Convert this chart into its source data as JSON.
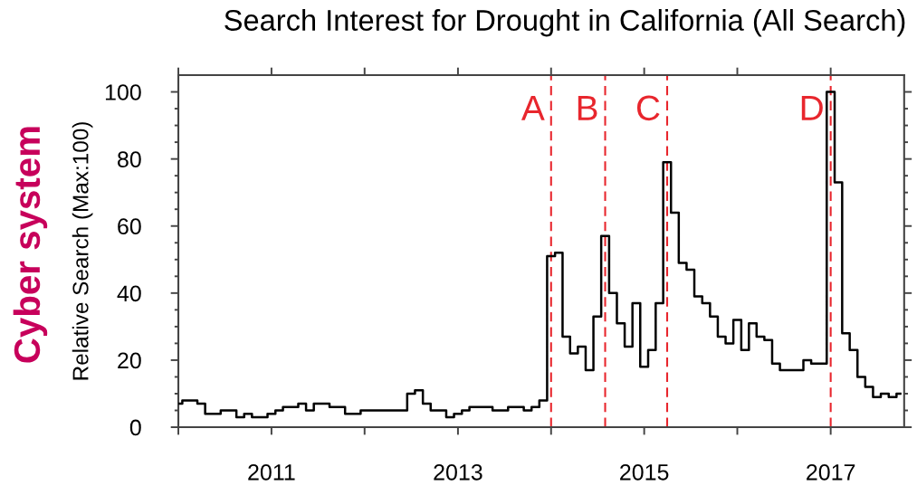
{
  "chart_data": {
    "type": "step",
    "title": "Search Interest for Drought in California (All Search)",
    "ylabel": "Relative Search (Max:100)",
    "annotations": [
      "Cyber system"
    ],
    "x": [
      "2010-01",
      "2010-02",
      "2010-03",
      "2010-04",
      "2010-05",
      "2010-06",
      "2010-07",
      "2010-08",
      "2010-09",
      "2010-10",
      "2010-11",
      "2010-12",
      "2011-01",
      "2011-02",
      "2011-03",
      "2011-04",
      "2011-05",
      "2011-06",
      "2011-07",
      "2011-08",
      "2011-09",
      "2011-10",
      "2011-11",
      "2011-12",
      "2012-01",
      "2012-02",
      "2012-03",
      "2012-04",
      "2012-05",
      "2012-06",
      "2012-07",
      "2012-08",
      "2012-09",
      "2012-10",
      "2012-11",
      "2012-12",
      "2013-01",
      "2013-02",
      "2013-03",
      "2013-04",
      "2013-05",
      "2013-06",
      "2013-07",
      "2013-08",
      "2013-09",
      "2013-10",
      "2013-11",
      "2013-12",
      "2014-01",
      "2014-02",
      "2014-03",
      "2014-04",
      "2014-05",
      "2014-06",
      "2014-07",
      "2014-08",
      "2014-09",
      "2014-10",
      "2014-11",
      "2014-12",
      "2015-01",
      "2015-02",
      "2015-03",
      "2015-04",
      "2015-05",
      "2015-06",
      "2015-07",
      "2015-08",
      "2015-09",
      "2015-10",
      "2015-11",
      "2015-12",
      "2016-01",
      "2016-02",
      "2016-03",
      "2016-04",
      "2016-05",
      "2016-06",
      "2016-07",
      "2016-08",
      "2016-09",
      "2016-10",
      "2016-11",
      "2016-12",
      "2017-01",
      "2017-02",
      "2017-03",
      "2017-04",
      "2017-05",
      "2017-06",
      "2017-07",
      "2017-08",
      "2017-09",
      "2017-10"
    ],
    "series": [
      {
        "color": "#000000",
        "values": [
          7,
          8,
          8,
          7,
          4,
          4,
          5,
          5,
          3,
          4,
          3,
          3,
          4,
          5,
          6,
          6,
          7,
          5,
          7,
          7,
          6,
          6,
          4,
          4,
          5,
          5,
          5,
          5,
          5,
          5,
          10,
          11,
          7,
          5,
          5,
          3,
          4,
          5,
          6,
          6,
          6,
          5,
          5,
          6,
          6,
          5,
          6,
          8,
          51,
          52,
          27,
          22,
          24,
          17,
          33,
          57,
          40,
          31,
          24,
          37,
          18,
          23,
          37,
          79,
          64,
          49,
          47,
          39,
          37,
          33,
          27,
          25,
          32,
          23,
          31,
          27,
          26,
          19,
          17,
          17,
          17,
          20,
          19,
          19,
          100,
          73,
          28,
          23,
          15,
          12,
          9,
          10,
          9,
          10
        ]
      }
    ],
    "xlim": [
      "2010-01",
      "2017-10-16"
    ],
    "xticks": [
      {
        "value": "2010",
        "label": null
      },
      "2011",
      {
        "value": "2012",
        "label": null
      },
      "2013",
      {
        "value": "2014",
        "label": null
      },
      "2015",
      {
        "value": "2016",
        "label": null
      },
      "2017"
    ],
    "ylim": [
      0,
      105
    ],
    "yticks": [
      0,
      {
        "value": 5,
        "label": null
      },
      {
        "value": 10,
        "label": null
      },
      {
        "value": 15,
        "label": null
      },
      20,
      {
        "value": 25,
        "label": null
      },
      {
        "value": 30,
        "label": null
      },
      {
        "value": 35,
        "label": null
      },
      40,
      {
        "value": 45,
        "label": null
      },
      {
        "value": 50,
        "label": null
      },
      {
        "value": 55,
        "label": null
      },
      60,
      {
        "value": 65,
        "label": null
      },
      {
        "value": 70,
        "label": null
      },
      {
        "value": 75,
        "label": null
      },
      80,
      {
        "value": 85,
        "label": null
      },
      {
        "value": 90,
        "label": null
      },
      {
        "value": 95,
        "label": null
      },
      100
    ],
    "ref_lines": [
      {
        "axis": "x",
        "value": "2014-01",
        "label": "A",
        "color": "#e8262d",
        "line_style": "dashed"
      },
      {
        "axis": "x",
        "value": "2014-08",
        "label": "B",
        "color": "#e8262d",
        "line_style": "dashed"
      },
      {
        "axis": "x",
        "value": "2015-04",
        "label": "C",
        "color": "#e8262d",
        "line_style": "dashed"
      },
      {
        "axis": "x",
        "value": "2017-01",
        "label": "D",
        "color": "#e8262d",
        "line_style": "dashed"
      }
    ]
  }
}
